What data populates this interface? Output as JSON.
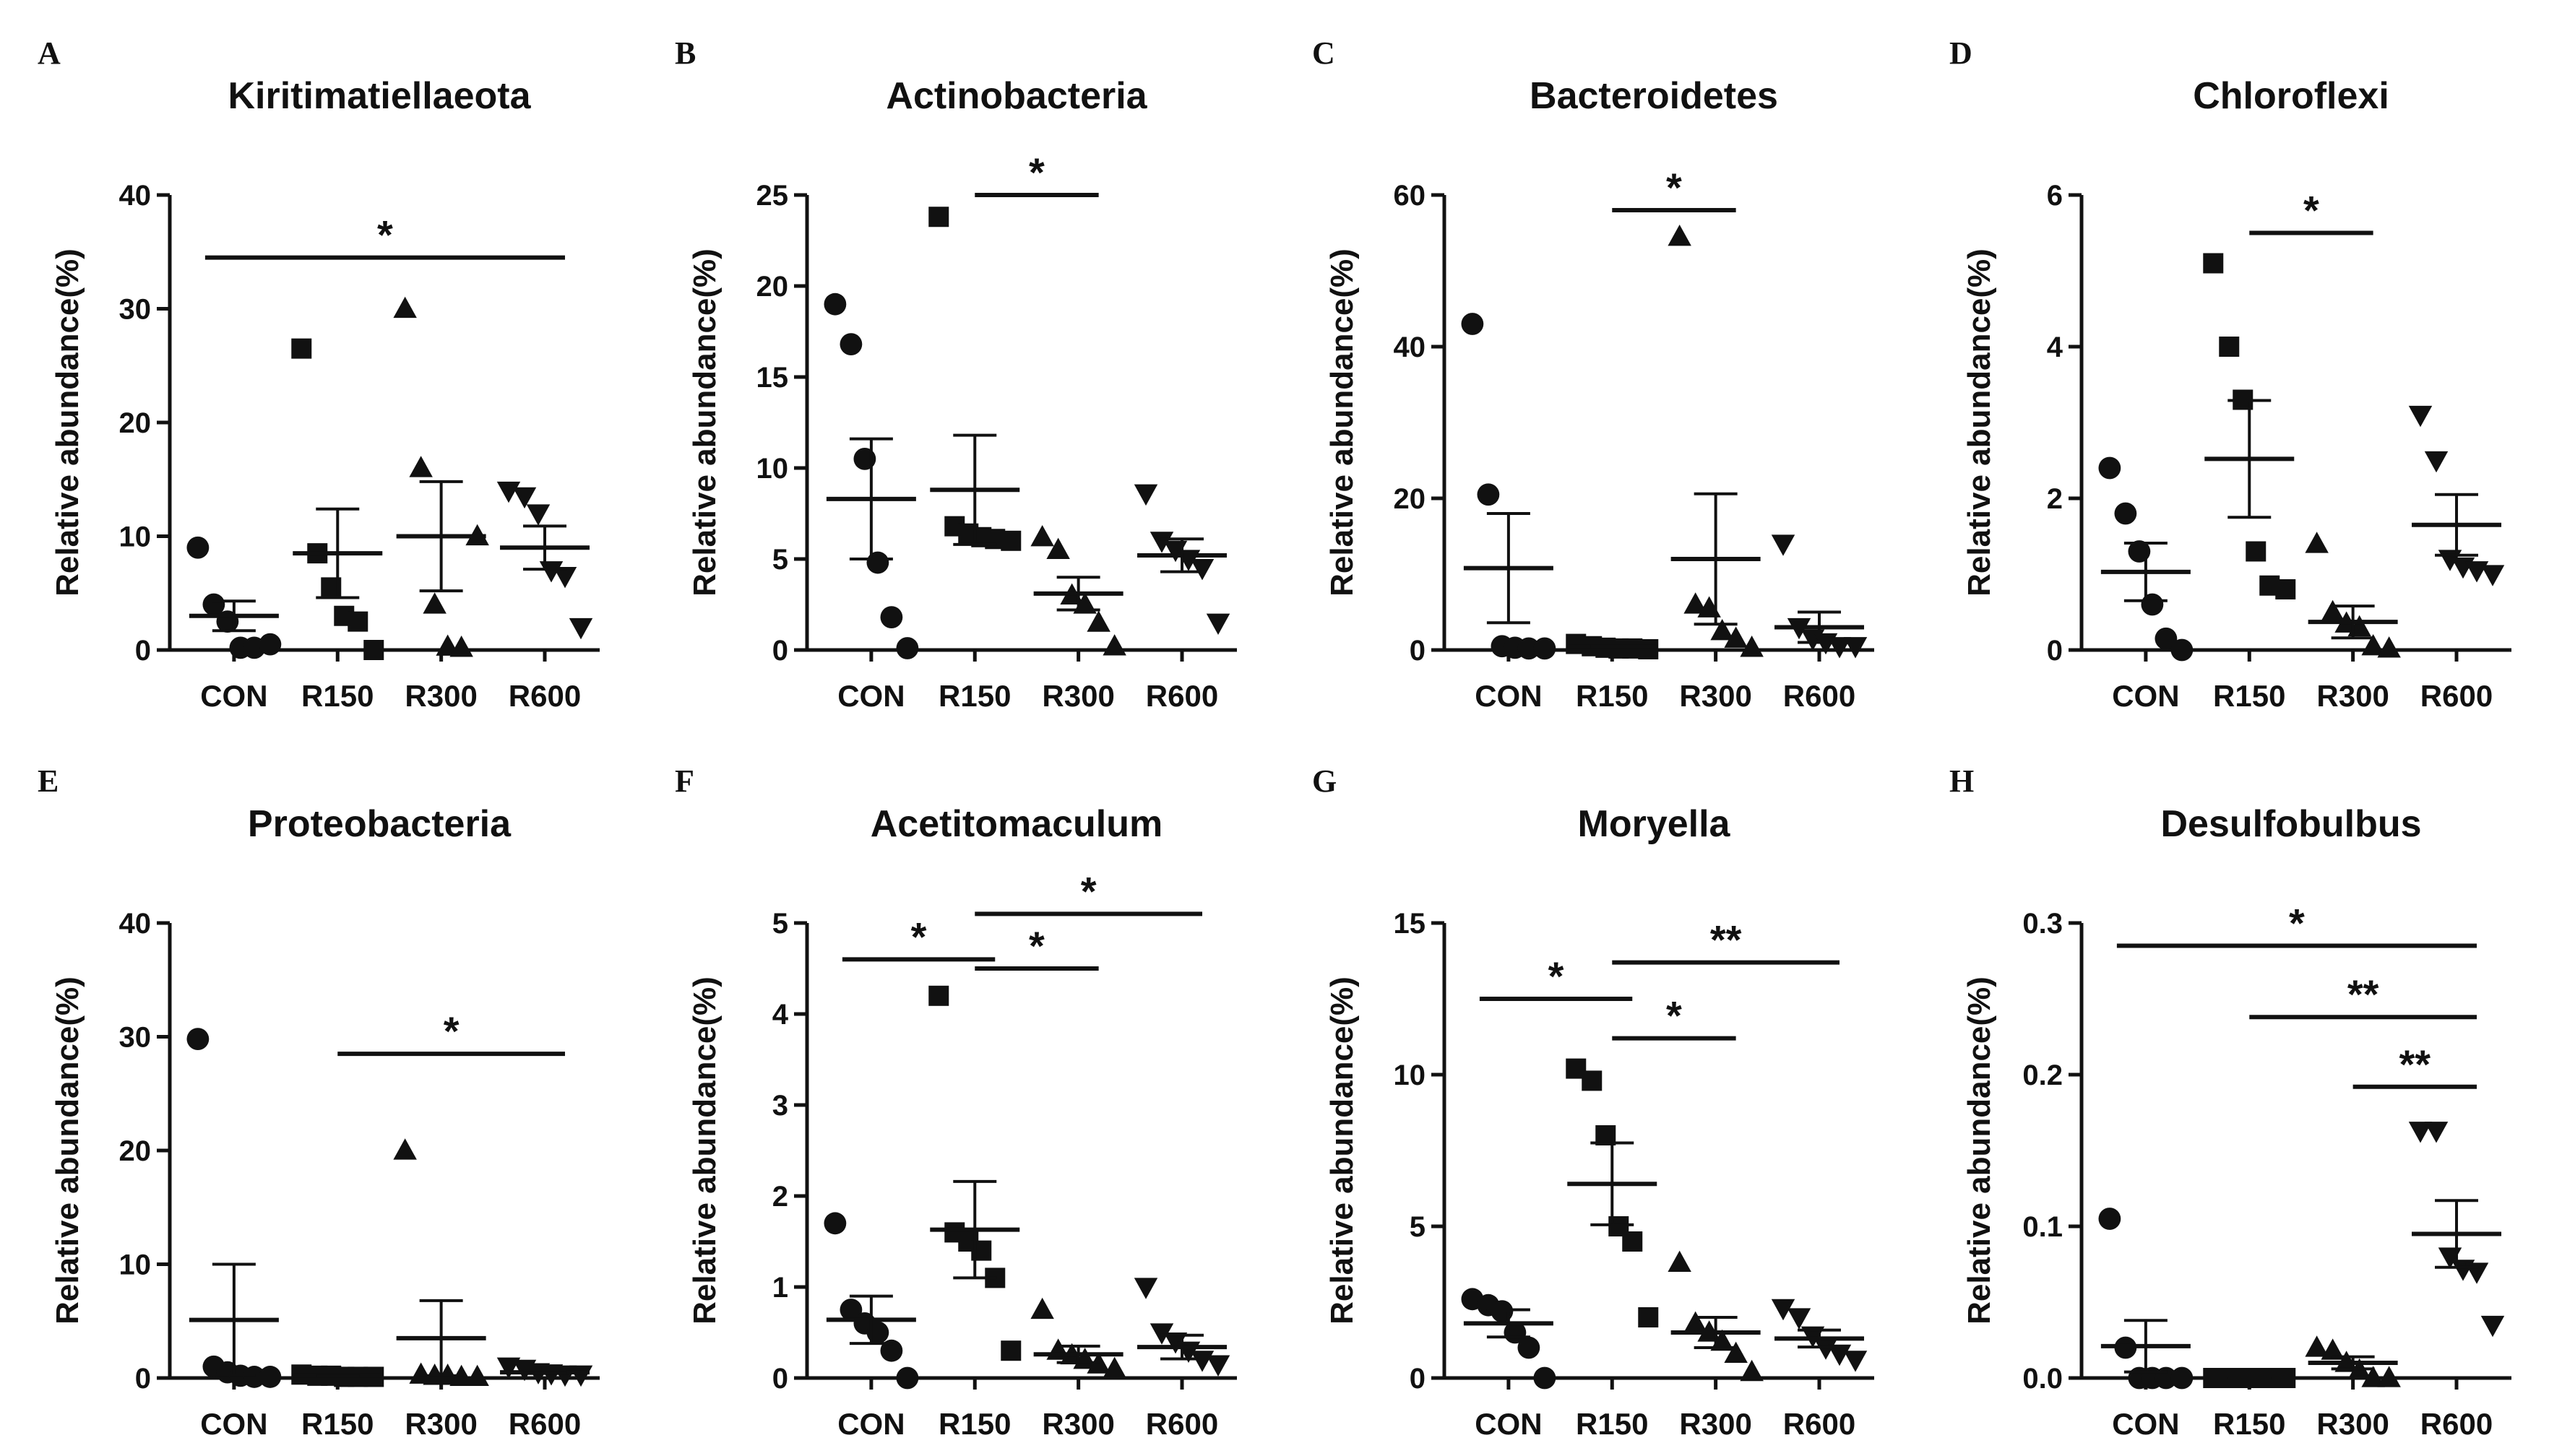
{
  "chart_data": [
    {
      "letter": "A",
      "title": "Kiritimatiellaeota",
      "type": "scatter",
      "ylabel": "Relative abundance(%)",
      "categories": [
        "CON",
        "R150",
        "R300",
        "R600"
      ],
      "ylim": [
        0,
        40
      ],
      "yticks": [
        "0",
        "10",
        "20",
        "30",
        "40"
      ],
      "points": [
        [
          9.0,
          4.0,
          2.5,
          0.2,
          0.2,
          0.5
        ],
        [
          26.5,
          8.5,
          5.5,
          3.0,
          2.5,
          0.0
        ],
        [
          30.0,
          16.0,
          4.0,
          0.3,
          0.2,
          10.0
        ],
        [
          14.0,
          13.5,
          12.0,
          7.0,
          6.5,
          2.0
        ]
      ],
      "mean": [
        3.0,
        8.5,
        10.0,
        9.0
      ],
      "sem": [
        1.3,
        3.9,
        4.8,
        1.9
      ],
      "sig": [
        {
          "from": 0,
          "to": 3,
          "label": "*",
          "y": 34.5
        }
      ]
    },
    {
      "letter": "B",
      "title": "Actinobacteria",
      "type": "scatter",
      "ylabel": "Relative abundance(%)",
      "categories": [
        "CON",
        "R150",
        "R300",
        "R600"
      ],
      "ylim": [
        0,
        25
      ],
      "yticks": [
        "0",
        "5",
        "10",
        "15",
        "20",
        "25"
      ],
      "points": [
        [
          19.0,
          16.8,
          10.5,
          4.8,
          1.8,
          0.1
        ],
        [
          23.8,
          6.8,
          6.4,
          6.2,
          6.1,
          6.0
        ],
        [
          6.2,
          5.5,
          3.0,
          2.5,
          1.5,
          0.2
        ],
        [
          8.6,
          6.0,
          5.5,
          5.0,
          4.5,
          1.5
        ]
      ],
      "mean": [
        8.3,
        8.8,
        3.1,
        5.2
      ],
      "sem": [
        3.3,
        3.0,
        0.9,
        0.9
      ],
      "sig": [
        {
          "from": 1,
          "to": 2,
          "label": "*",
          "y": 25.0
        }
      ]
    },
    {
      "letter": "C",
      "title": "Bacteroidetes",
      "type": "scatter",
      "ylabel": "Relative abundance(%)",
      "categories": [
        "CON",
        "R150",
        "R300",
        "R600"
      ],
      "ylim": [
        0,
        60
      ],
      "yticks": [
        "0",
        "20",
        "40",
        "60"
      ],
      "points": [
        [
          43.0,
          20.5,
          0.5,
          0.3,
          0.2,
          0.2
        ],
        [
          0.8,
          0.5,
          0.3,
          0.2,
          0.2,
          0.1
        ],
        [
          54.5,
          6.0,
          5.5,
          2.5,
          1.5,
          0.3
        ],
        [
          14.0,
          3.0,
          1.5,
          1.0,
          0.5,
          0.5
        ]
      ],
      "mean": [
        10.8,
        0.4,
        12.0,
        3.0
      ],
      "sem": [
        7.2,
        0.1,
        8.6,
        2.0
      ],
      "sig": [
        {
          "from": 1,
          "to": 2,
          "label": "*",
          "y": 58.0
        }
      ]
    },
    {
      "letter": "D",
      "title": "Chloroflexi",
      "type": "scatter",
      "ylabel": "Relative abundance(%)",
      "categories": [
        "CON",
        "R150",
        "R300",
        "R600"
      ],
      "ylim": [
        0,
        6
      ],
      "yticks": [
        "0",
        "2",
        "4",
        "6"
      ],
      "points": [
        [
          2.4,
          1.8,
          1.3,
          0.6,
          0.15,
          0.0
        ],
        [
          5.1,
          4.0,
          3.3,
          1.3,
          0.85,
          0.8
        ],
        [
          1.4,
          0.5,
          0.35,
          0.3,
          0.05,
          0.02
        ],
        [
          3.1,
          2.5,
          1.2,
          1.1,
          1.05,
          1.0
        ]
      ],
      "mean": [
        1.03,
        2.52,
        0.37,
        1.65
      ],
      "sem": [
        0.38,
        0.77,
        0.21,
        0.4
      ],
      "sig": [
        {
          "from": 1,
          "to": 2,
          "label": "*",
          "y": 5.5
        }
      ]
    },
    {
      "letter": "E",
      "title": "Proteobacteria",
      "type": "scatter",
      "ylabel": "Relative abundance(%)",
      "categories": [
        "CON",
        "R150",
        "R300",
        "R600"
      ],
      "ylim": [
        0,
        40
      ],
      "yticks": [
        "0",
        "10",
        "20",
        "30",
        "40"
      ],
      "points": [
        [
          29.8,
          1.0,
          0.5,
          0.2,
          0.1,
          0.1
        ],
        [
          0.3,
          0.2,
          0.2,
          0.1,
          0.1,
          0.1
        ],
        [
          20.0,
          0.3,
          0.2,
          0.2,
          0.1,
          0.1
        ],
        [
          1.0,
          0.8,
          0.5,
          0.4,
          0.3,
          0.3
        ]
      ],
      "mean": [
        5.1,
        0.2,
        3.5,
        0.5
      ],
      "sem": [
        4.9,
        0.05,
        3.3,
        0.1
      ],
      "sig": [
        {
          "from": 1,
          "to": 3,
          "label": "*",
          "y": 28.5
        }
      ]
    },
    {
      "letter": "F",
      "title": "Acetitomaculum",
      "type": "scatter",
      "ylabel": "Relative abundance(%)",
      "categories": [
        "CON",
        "R150",
        "R300",
        "R600"
      ],
      "ylim": [
        0,
        5
      ],
      "yticks": [
        "0",
        "1",
        "2",
        "3",
        "4",
        "5"
      ],
      "points": [
        [
          1.7,
          0.75,
          0.6,
          0.5,
          0.3,
          0.0
        ],
        [
          4.2,
          1.6,
          1.5,
          1.4,
          1.1,
          0.3
        ],
        [
          0.75,
          0.3,
          0.25,
          0.2,
          0.15,
          0.1
        ],
        [
          1.0,
          0.5,
          0.4,
          0.3,
          0.2,
          0.15
        ]
      ],
      "mean": [
        0.64,
        1.63,
        0.26,
        0.34
      ],
      "sem": [
        0.26,
        0.53,
        0.09,
        0.13
      ],
      "sig": [
        {
          "from": 0,
          "to": 1,
          "label": "*",
          "y": 4.6
        },
        {
          "from": 1,
          "to": 2,
          "label": "*",
          "y": 4.5
        },
        {
          "from": 1,
          "to": 3,
          "label": "*",
          "y": 5.1
        }
      ]
    },
    {
      "letter": "G",
      "title": "Moryella",
      "type": "scatter",
      "ylabel": "Relative abundance(%)",
      "categories": [
        "CON",
        "R150",
        "R300",
        "R600"
      ],
      "ylim": [
        0,
        15
      ],
      "yticks": [
        "0",
        "5",
        "10",
        "15"
      ],
      "points": [
        [
          2.6,
          2.4,
          2.2,
          1.5,
          1.0,
          0.0
        ],
        [
          10.2,
          9.8,
          8.0,
          5.0,
          4.5,
          2.0
        ],
        [
          3.8,
          1.8,
          1.5,
          1.2,
          0.8,
          0.2
        ],
        [
          2.3,
          2.0,
          1.4,
          1.0,
          0.8,
          0.6
        ]
      ],
      "mean": [
        1.8,
        6.4,
        1.5,
        1.3
      ],
      "sem": [
        0.45,
        1.35,
        0.5,
        0.28
      ],
      "sig": [
        {
          "from": 0,
          "to": 1,
          "label": "*",
          "y": 12.5
        },
        {
          "from": 1,
          "to": 2,
          "label": "*",
          "y": 11.2
        },
        {
          "from": 1,
          "to": 3,
          "label": "**",
          "y": 13.7
        }
      ]
    },
    {
      "letter": "H",
      "title": "Desulfobulbus",
      "type": "scatter",
      "ylabel": "Relative abundance(%)",
      "categories": [
        "CON",
        "R150",
        "R300",
        "R600"
      ],
      "ylim": [
        0,
        0.3
      ],
      "yticks": [
        "0.0",
        "0.1",
        "0.2",
        "0.3"
      ],
      "points": [
        [
          0.105,
          0.02,
          0.0,
          0.0,
          0.0,
          0.0
        ],
        [
          0.0,
          0.0,
          0.0,
          0.0,
          0.0,
          0.0
        ],
        [
          0.02,
          0.018,
          0.01,
          0.005,
          0.0,
          0.0
        ],
        [
          0.163,
          0.163,
          0.08,
          0.072,
          0.07,
          0.035
        ]
      ],
      "mean": [
        0.021,
        0.0,
        0.01,
        0.095
      ],
      "sem": [
        0.017,
        0.0,
        0.004,
        0.022
      ],
      "sig": [
        {
          "from": 0,
          "to": 3,
          "label": "*",
          "y": 0.285
        },
        {
          "from": 1,
          "to": 3,
          "label": "**",
          "y": 0.238
        },
        {
          "from": 2,
          "to": 3,
          "label": "**",
          "y": 0.192
        }
      ]
    }
  ]
}
